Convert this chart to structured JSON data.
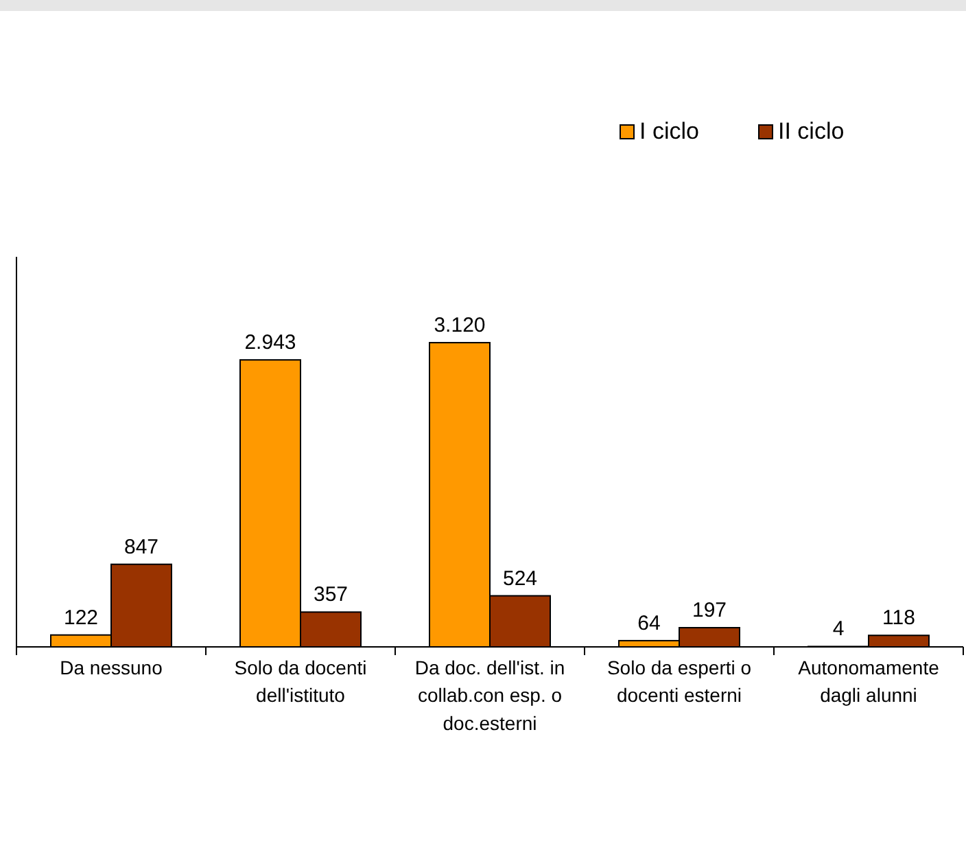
{
  "chart_data": {
    "type": "bar",
    "categories": [
      "Da nessuno",
      "Solo da docenti dell'istituto",
      "Da doc. dell'ist. in collab.con esp. o doc.esterni",
      "Solo da esperti o docenti esterni",
      "Autonomamente dagli alunni"
    ],
    "series": [
      {
        "name": "I ciclo",
        "color": "#ff9900",
        "values": [
          122,
          2943,
          3120,
          64,
          4
        ],
        "value_labels": [
          "122",
          "2.943",
          "3.120",
          "64",
          "4"
        ]
      },
      {
        "name": "II ciclo",
        "color": "#993300",
        "values": [
          847,
          357,
          524,
          197,
          118
        ],
        "value_labels": [
          "847",
          "357",
          "524",
          "197",
          "118"
        ]
      }
    ],
    "ylim": [
      0,
      4000
    ],
    "legend": "top right"
  }
}
